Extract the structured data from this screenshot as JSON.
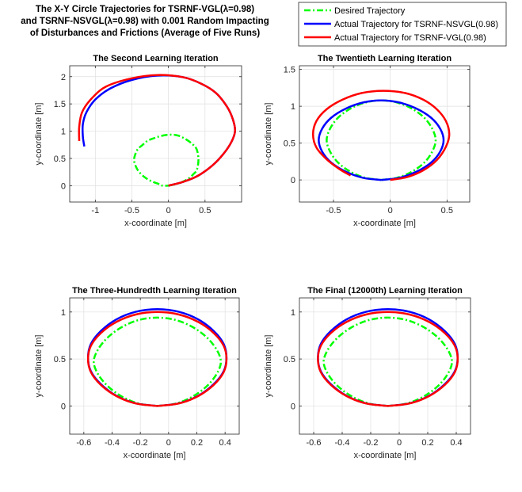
{
  "figure": {
    "title_lines": [
      "The X-Y Circle Trajectories for TSRNF-VGL(λ=0.98)",
      "and TSRNF-NSVGL(λ=0.98) with 0.001 Random Impacting",
      "of Disturbances  and Frictions (Average of Five Runs)"
    ]
  },
  "legend": {
    "entries": [
      {
        "label": "Desired Trajectory",
        "color": "#00ff00",
        "style": "dash-dot"
      },
      {
        "label": "Actual Trajectory for TSRNF-NSVGL(0.98)",
        "color": "#0000ff",
        "style": "solid"
      },
      {
        "label": "Actual Trajectory for TSRNF-VGL(0.98)",
        "color": "#ff0000",
        "style": "solid"
      }
    ]
  },
  "chart_data": [
    {
      "type": "line",
      "title": "The Second Learning Iteration",
      "xlabel": "x-coordinate [m]",
      "ylabel": "y-coordinate [m]",
      "xlim": [
        -1.35,
        1.0
      ],
      "ylim": [
        -0.3,
        2.2
      ],
      "xticks": [
        -1,
        -0.5,
        0,
        0.5
      ],
      "xtick_labels": [
        "-1",
        "-0.5",
        "0",
        "0.5"
      ],
      "yticks": [
        0,
        0.5,
        1,
        1.5,
        2
      ],
      "ytick_labels": [
        "0",
        "0.5",
        "1",
        "1.5",
        "2"
      ],
      "grid": true,
      "series": [
        {
          "name": "Desired Trajectory",
          "color": "#00ff00",
          "x": [
            0.0,
            0.104,
            0.195,
            0.28,
            0.34,
            0.388,
            0.41,
            0.388,
            0.33,
            0.24,
            0.13,
            0.01,
            -0.105,
            -0.2,
            -0.29,
            -0.36,
            -0.413,
            -0.45,
            -0.47,
            -0.445,
            -0.4,
            -0.32,
            -0.23,
            -0.13,
            -0.08,
            0.0
          ],
          "y": [
            0.0,
            0.03,
            0.072,
            0.135,
            0.21,
            0.29,
            0.47,
            0.66,
            0.76,
            0.85,
            0.92,
            0.935,
            0.91,
            0.87,
            0.82,
            0.74,
            0.68,
            0.59,
            0.47,
            0.35,
            0.25,
            0.15,
            0.08,
            0.03,
            0.0,
            0.0
          ]
        },
        {
          "name": "Actual Trajectory for TSRNF-NSVGL(0.98)",
          "color": "#0000ff",
          "x": [
            0.0,
            0.2,
            0.4,
            0.6,
            0.75,
            0.86,
            0.91,
            0.88,
            0.8,
            0.65,
            0.45,
            0.2,
            -0.15,
            -0.5,
            -0.8,
            -1.0,
            -1.12,
            -1.17,
            -1.17,
            -1.15
          ],
          "y": [
            0.0,
            0.07,
            0.18,
            0.37,
            0.58,
            0.8,
            1.0,
            1.22,
            1.45,
            1.7,
            1.87,
            1.99,
            2.02,
            1.94,
            1.78,
            1.58,
            1.35,
            1.13,
            0.9,
            0.72
          ]
        },
        {
          "name": "Actual Trajectory for TSRNF-VGL(0.98)",
          "color": "#ff0000",
          "x": [
            0.0,
            0.2,
            0.4,
            0.6,
            0.75,
            0.86,
            0.91,
            0.88,
            0.8,
            0.65,
            0.45,
            0.2,
            -0.15,
            -0.5,
            -0.85,
            -1.05,
            -1.18,
            -1.22,
            -1.22
          ],
          "y": [
            0.0,
            0.07,
            0.18,
            0.37,
            0.58,
            0.8,
            1.0,
            1.22,
            1.45,
            1.7,
            1.87,
            1.99,
            2.03,
            1.97,
            1.82,
            1.6,
            1.35,
            1.08,
            0.82
          ]
        }
      ]
    },
    {
      "type": "line",
      "title": "The Twentieth Learning Iteration",
      "xlabel": "x-coordinate [m]",
      "ylabel": "y-coordinate [m]",
      "xlim": [
        -0.8,
        0.7
      ],
      "ylim": [
        -0.3,
        1.55
      ],
      "xticks": [
        -0.5,
        0,
        0.5
      ],
      "xtick_labels": [
        "-0.5",
        "0",
        "0.5"
      ],
      "yticks": [
        0,
        0.5,
        1,
        1.5
      ],
      "ytick_labels": [
        "0",
        "0.5",
        "1",
        "1.5"
      ],
      "grid": true,
      "series": [
        {
          "name": "Desired Trajectory",
          "color": "#00ff00",
          "x": [
            -0.08,
            0.06,
            0.19,
            0.3,
            0.37,
            0.4,
            0.37,
            0.3,
            0.19,
            0.06,
            -0.08,
            -0.22,
            -0.35,
            -0.46,
            -0.53,
            -0.56,
            -0.53,
            -0.46,
            -0.35,
            -0.22,
            -0.08
          ],
          "y": [
            0.0,
            0.029,
            0.111,
            0.236,
            0.385,
            0.54,
            0.695,
            0.844,
            0.969,
            1.051,
            1.08,
            1.051,
            0.969,
            0.844,
            0.695,
            0.54,
            0.385,
            0.236,
            0.111,
            0.029,
            0.0
          ]
        },
        {
          "name": "Actual Trajectory for TSRNF-NSVGL(0.98)",
          "color": "#0000ff",
          "x": [
            -0.08,
            0.08,
            0.23,
            0.36,
            0.44,
            0.47,
            0.44,
            0.36,
            0.23,
            0.08,
            -0.08,
            -0.24,
            -0.39,
            -0.52,
            -0.6,
            -0.63,
            -0.6,
            -0.52,
            -0.39,
            -0.24,
            -0.08
          ],
          "y": [
            0.0,
            0.029,
            0.111,
            0.236,
            0.385,
            0.54,
            0.695,
            0.844,
            0.969,
            1.051,
            1.08,
            1.051,
            0.969,
            0.844,
            0.695,
            0.54,
            0.385,
            0.236,
            0.111,
            0.029,
            0.0
          ]
        },
        {
          "name": "Actual Trajectory for TSRNF-VGL(0.98)",
          "color": "#ff0000",
          "x": [
            0.0,
            0.15,
            0.29,
            0.41,
            0.49,
            0.52,
            0.49,
            0.41,
            0.29,
            0.13,
            -0.06,
            -0.25,
            -0.42,
            -0.56,
            -0.65,
            -0.68,
            -0.65,
            -0.56,
            -0.45,
            -0.35
          ],
          "y": [
            0.0,
            0.04,
            0.13,
            0.27,
            0.45,
            0.62,
            0.8,
            0.96,
            1.09,
            1.18,
            1.21,
            1.18,
            1.09,
            0.96,
            0.8,
            0.62,
            0.44,
            0.28,
            0.15,
            0.06
          ]
        }
      ]
    },
    {
      "type": "line",
      "title": "The Three-Hundredth Learning Iteration",
      "xlabel": "x-coordinate [m]",
      "ylabel": "y-coordinate [m]",
      "xlim": [
        -0.7,
        0.5
      ],
      "ylim": [
        -0.3,
        1.15
      ],
      "xticks": [
        -0.6,
        -0.4,
        -0.2,
        0,
        0.2,
        0.4
      ],
      "xtick_labels": [
        "-0.6",
        "-0.4",
        "-0.2",
        "0",
        "0.2",
        "0.4"
      ],
      "yticks": [
        0,
        0.5,
        1
      ],
      "ytick_labels": [
        "0",
        "0.5",
        "1"
      ],
      "grid": true,
      "series": [
        {
          "name": "Desired Trajectory",
          "color": "#00ff00",
          "x": [
            -0.08,
            0.05,
            0.17,
            0.27,
            0.34,
            0.37,
            0.34,
            0.27,
            0.17,
            0.05,
            -0.08,
            -0.21,
            -0.33,
            -0.43,
            -0.5,
            -0.53,
            -0.5,
            -0.43,
            -0.33,
            -0.21,
            -0.08
          ],
          "y": [
            0.0,
            0.025,
            0.1,
            0.21,
            0.34,
            0.47,
            0.6,
            0.73,
            0.84,
            0.915,
            0.94,
            0.915,
            0.84,
            0.73,
            0.6,
            0.47,
            0.34,
            0.21,
            0.1,
            0.025,
            0.0
          ]
        },
        {
          "name": "Actual Trajectory for TSRNF-NSVGL(0.98)",
          "color": "#0000ff",
          "x": [
            -0.08,
            0.073,
            0.21,
            0.32,
            0.39,
            0.41,
            0.39,
            0.32,
            0.21,
            0.073,
            -0.08,
            -0.233,
            -0.37,
            -0.48,
            -0.55,
            -0.57,
            -0.55,
            -0.48,
            -0.37,
            -0.233,
            -0.08
          ],
          "y": [
            0.0,
            0.028,
            0.109,
            0.233,
            0.37,
            0.515,
            0.66,
            0.797,
            0.921,
            1.002,
            1.03,
            1.002,
            0.921,
            0.797,
            0.66,
            0.515,
            0.37,
            0.233,
            0.109,
            0.028,
            0.0
          ]
        },
        {
          "name": "Actual Trajectory for TSRNF-VGL(0.98)",
          "color": "#ff0000",
          "x": [
            -0.08,
            0.073,
            0.21,
            0.32,
            0.39,
            0.41,
            0.39,
            0.32,
            0.21,
            0.073,
            -0.08,
            -0.233,
            -0.37,
            -0.48,
            -0.55,
            -0.57,
            -0.55,
            -0.48,
            -0.37,
            -0.233,
            -0.08
          ],
          "y": [
            0.0,
            0.027,
            0.106,
            0.225,
            0.36,
            0.5,
            0.64,
            0.775,
            0.894,
            0.973,
            1.0,
            0.973,
            0.894,
            0.775,
            0.64,
            0.5,
            0.36,
            0.225,
            0.106,
            0.027,
            0.0
          ]
        }
      ]
    },
    {
      "type": "line",
      "title": "The Final (12000th) Learning Iteration",
      "xlabel": "x-coordinate [m]",
      "ylabel": "y-coordinate [m]",
      "xlim": [
        -0.7,
        0.5
      ],
      "ylim": [
        -0.3,
        1.15
      ],
      "xticks": [
        -0.6,
        -0.4,
        -0.2,
        0,
        0.2,
        0.4
      ],
      "xtick_labels": [
        "-0.6",
        "-0.4",
        "-0.2",
        "0",
        "0.2",
        "0.4"
      ],
      "yticks": [
        0,
        0.5,
        1
      ],
      "ytick_labels": [
        "0",
        "0.5",
        "1"
      ],
      "grid": true,
      "series": [
        {
          "name": "Desired Trajectory",
          "color": "#00ff00",
          "x": [
            -0.08,
            0.05,
            0.17,
            0.27,
            0.34,
            0.37,
            0.34,
            0.27,
            0.17,
            0.05,
            -0.08,
            -0.21,
            -0.33,
            -0.43,
            -0.5,
            -0.53,
            -0.5,
            -0.43,
            -0.33,
            -0.21,
            -0.08
          ],
          "y": [
            0.0,
            0.025,
            0.1,
            0.21,
            0.34,
            0.47,
            0.6,
            0.73,
            0.84,
            0.915,
            0.94,
            0.915,
            0.84,
            0.73,
            0.6,
            0.47,
            0.34,
            0.21,
            0.1,
            0.025,
            0.0
          ]
        },
        {
          "name": "Actual Trajectory for TSRNF-NSVGL(0.98)",
          "color": "#0000ff",
          "x": [
            -0.08,
            0.073,
            0.21,
            0.32,
            0.39,
            0.41,
            0.39,
            0.32,
            0.21,
            0.073,
            -0.08,
            -0.233,
            -0.37,
            -0.48,
            -0.55,
            -0.57,
            -0.55,
            -0.48,
            -0.37,
            -0.233,
            -0.08
          ],
          "y": [
            0.0,
            0.028,
            0.109,
            0.233,
            0.37,
            0.515,
            0.66,
            0.797,
            0.921,
            1.002,
            1.03,
            1.002,
            0.921,
            0.797,
            0.66,
            0.515,
            0.37,
            0.233,
            0.109,
            0.028,
            0.0
          ]
        },
        {
          "name": "Actual Trajectory for TSRNF-VGL(0.98)",
          "color": "#ff0000",
          "x": [
            -0.08,
            0.073,
            0.21,
            0.32,
            0.39,
            0.41,
            0.39,
            0.32,
            0.21,
            0.073,
            -0.08,
            -0.233,
            -0.37,
            -0.48,
            -0.55,
            -0.57,
            -0.55,
            -0.48,
            -0.37,
            -0.233,
            -0.08
          ],
          "y": [
            0.0,
            0.027,
            0.106,
            0.225,
            0.36,
            0.5,
            0.64,
            0.775,
            0.894,
            0.973,
            1.0,
            0.973,
            0.894,
            0.775,
            0.64,
            0.5,
            0.36,
            0.225,
            0.106,
            0.027,
            0.0
          ]
        }
      ]
    }
  ]
}
